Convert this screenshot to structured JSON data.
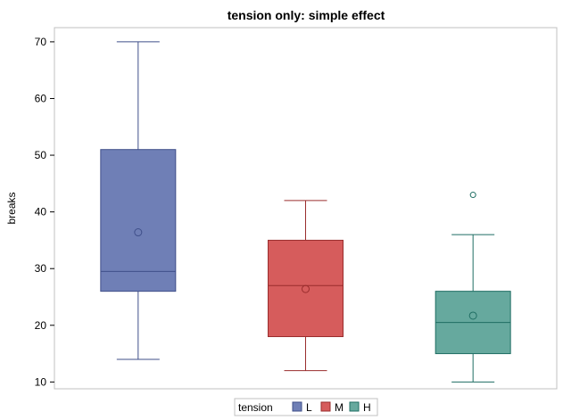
{
  "chart_data": {
    "type": "box",
    "title": "tension only: simple effect",
    "xlabel": "",
    "ylabel": "breaks",
    "ylim": [
      8.8,
      72.5
    ],
    "yticks": [
      10,
      20,
      30,
      40,
      50,
      60,
      70
    ],
    "grid": false,
    "legend": {
      "title": "tension",
      "position": "bottom-center",
      "entries": [
        "L",
        "M",
        "H"
      ]
    },
    "series": [
      {
        "name": "L",
        "color": "#6f7fb6",
        "edge": "#3f4f8a",
        "whisker_low": 14,
        "q1": 26,
        "median": 29.5,
        "q3": 51,
        "whisker_high": 70,
        "mean": 36.4,
        "outliers": []
      },
      {
        "name": "M",
        "color": "#d65c5c",
        "edge": "#9a2d2d",
        "whisker_low": 12,
        "q1": 18,
        "median": 27,
        "q3": 35,
        "whisker_high": 42,
        "mean": 26.4,
        "outliers": []
      },
      {
        "name": "H",
        "color": "#66a99e",
        "edge": "#1f6e63",
        "whisker_low": 10,
        "q1": 15,
        "median": 20.5,
        "q3": 26,
        "whisker_high": 36,
        "mean": 21.7,
        "outliers": [
          43
        ]
      }
    ]
  }
}
